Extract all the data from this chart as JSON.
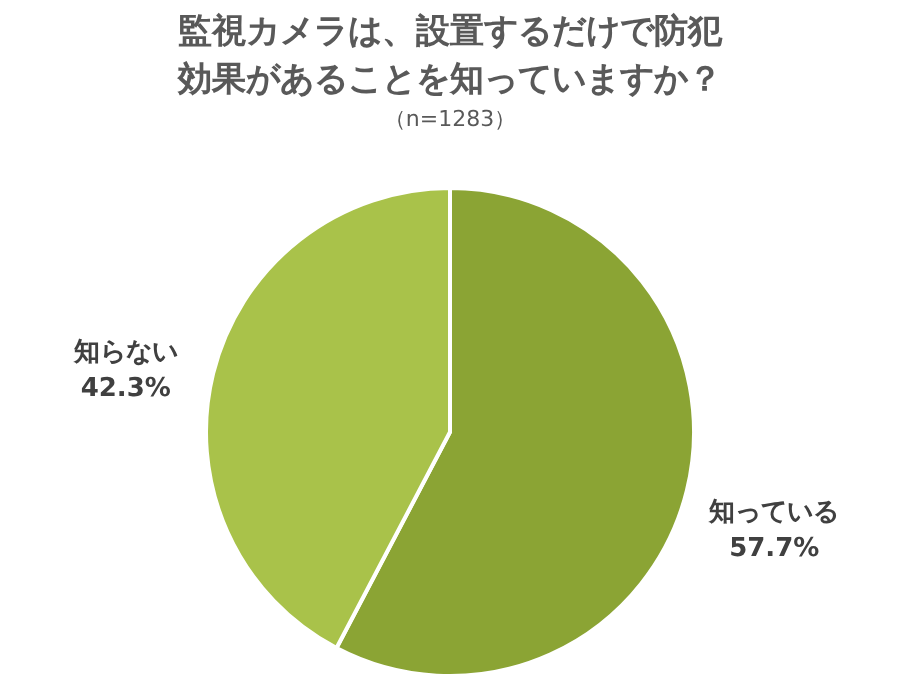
{
  "chart_data": {
    "type": "pie",
    "title": "監視カメラは、設置するだけで防犯効果があることを知っていますか？",
    "subtitle": "（n=1283）",
    "categories": [
      "知っている",
      "知らない"
    ],
    "values": [
      57.7,
      42.3
    ],
    "colors": [
      "#8ba434",
      "#a9c24a"
    ],
    "value_labels": [
      "57.7%",
      "42.3%"
    ]
  }
}
